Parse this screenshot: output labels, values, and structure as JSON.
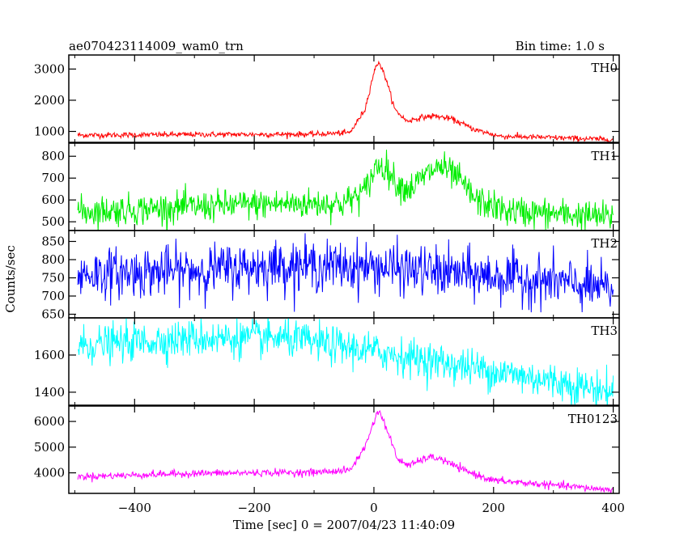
{
  "header": {
    "title": "ae070423114009_wam0_trn",
    "bin_time": "Bin time: 1.0 s"
  },
  "xlabel": "Time [sec] 0 = 2007/04/23 11:40:09",
  "ylabel": "Counts/sec",
  "chart_data": [
    {
      "type": "line",
      "name": "TH0",
      "color": "#ff0000",
      "xlim": [
        -510,
        410
      ],
      "ylim": [
        650,
        3450
      ],
      "yticks": [
        1000,
        2000,
        3000
      ],
      "xticks": [
        -400,
        -200,
        0,
        200,
        400
      ],
      "noise": 45,
      "keypoints": [
        [
          -500,
          880
        ],
        [
          -300,
          900
        ],
        [
          -100,
          910
        ],
        [
          -40,
          960
        ],
        [
          -15,
          1700
        ],
        [
          0,
          2900
        ],
        [
          8,
          3250
        ],
        [
          20,
          2700
        ],
        [
          35,
          1700
        ],
        [
          55,
          1330
        ],
        [
          80,
          1450
        ],
        [
          100,
          1500
        ],
        [
          130,
          1400
        ],
        [
          170,
          1050
        ],
        [
          210,
          850
        ],
        [
          300,
          800
        ],
        [
          400,
          740
        ]
      ]
    },
    {
      "type": "line",
      "name": "TH1",
      "color": "#00ee00",
      "xlim": [
        -510,
        410
      ],
      "ylim": [
        460,
        860
      ],
      "yticks": [
        500,
        600,
        700,
        800
      ],
      "xticks": [
        -400,
        -200,
        0,
        200,
        400
      ],
      "noise": 35,
      "keypoints": [
        [
          -500,
          545
        ],
        [
          -200,
          580
        ],
        [
          -50,
          585
        ],
        [
          -15,
          640
        ],
        [
          5,
          760
        ],
        [
          20,
          750
        ],
        [
          40,
          670
        ],
        [
          60,
          650
        ],
        [
          90,
          720
        ],
        [
          110,
          755
        ],
        [
          140,
          700
        ],
        [
          170,
          600
        ],
        [
          220,
          550
        ],
        [
          400,
          520
        ]
      ]
    },
    {
      "type": "line",
      "name": "TH2",
      "color": "#0000ff",
      "xlim": [
        -510,
        410
      ],
      "ylim": [
        640,
        880
      ],
      "yticks": [
        650,
        700,
        750,
        800,
        850
      ],
      "xticks": [
        -400,
        -200,
        0,
        200,
        400
      ],
      "noise": 34,
      "keypoints": [
        [
          -500,
          760
        ],
        [
          -300,
          770
        ],
        [
          -150,
          785
        ],
        [
          0,
          780
        ],
        [
          150,
          760
        ],
        [
          300,
          740
        ],
        [
          400,
          715
        ]
      ]
    },
    {
      "type": "line",
      "name": "TH3",
      "color": "#00ffff",
      "xlim": [
        -510,
        410
      ],
      "ylim": [
        1330,
        1800
      ],
      "yticks": [
        1400,
        1600
      ],
      "xticks": [
        -400,
        -200,
        0,
        200,
        400
      ],
      "noise": 50,
      "keypoints": [
        [
          -500,
          1650
        ],
        [
          -300,
          1690
        ],
        [
          -150,
          1690
        ],
        [
          0,
          1620
        ],
        [
          150,
          1540
        ],
        [
          300,
          1460
        ],
        [
          400,
          1400
        ]
      ]
    },
    {
      "type": "line",
      "name": "TH0123",
      "color": "#ff00ff",
      "xlim": [
        -510,
        410
      ],
      "ylim": [
        3200,
        6600
      ],
      "yticks": [
        4000,
        5000,
        6000
      ],
      "xticks": [
        -400,
        -200,
        0,
        200,
        400
      ],
      "noise": 70,
      "keypoints": [
        [
          -500,
          3850
        ],
        [
          -300,
          3980
        ],
        [
          -100,
          4020
        ],
        [
          -40,
          4100
        ],
        [
          -15,
          5000
        ],
        [
          0,
          6000
        ],
        [
          8,
          6450
        ],
        [
          20,
          5800
        ],
        [
          40,
          4500
        ],
        [
          60,
          4300
        ],
        [
          90,
          4600
        ],
        [
          110,
          4560
        ],
        [
          150,
          4100
        ],
        [
          200,
          3700
        ],
        [
          300,
          3520
        ],
        [
          400,
          3330
        ]
      ]
    }
  ],
  "xtick_labels": [
    "−400",
    "−200",
    "0",
    "200",
    "400"
  ]
}
